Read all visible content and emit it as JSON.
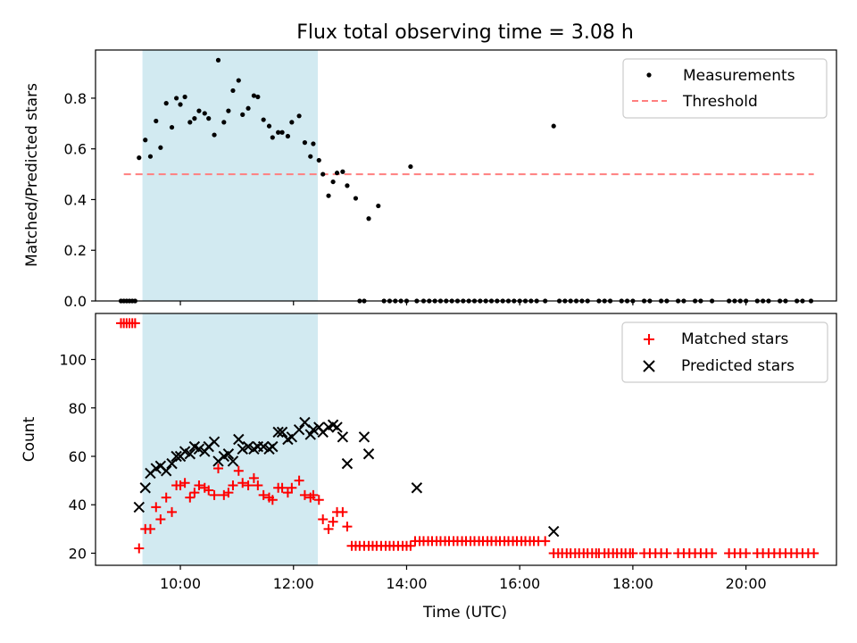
{
  "title": "Flux total observing time = 3.08 h",
  "colors": {
    "shade": "#add8e6",
    "threshold": "#ff7f7f",
    "matched": "#ff0000",
    "predicted": "#000000",
    "measure": "#000000"
  },
  "chart_data": [
    {
      "type": "scatter",
      "ylabel": "Matched/Predicted stars",
      "xlim": [
        8.5,
        21.6
      ],
      "ylim": [
        0,
        0.99
      ],
      "yticks": [
        0.0,
        0.2,
        0.4,
        0.6,
        0.8
      ],
      "ytick_labels": [
        "0.0",
        "0.2",
        "0.4",
        "0.6",
        "0.8"
      ],
      "shaded_span": [
        9.33,
        12.43
      ],
      "legend": {
        "position": "top-right",
        "entries": [
          "Measurements",
          "Threshold"
        ]
      },
      "threshold": {
        "name": "Threshold",
        "value": 0.5,
        "x_range": [
          9.0,
          21.2
        ]
      },
      "series": [
        {
          "name": "Measurements",
          "x": [
            8.95,
            9.0,
            9.05,
            9.1,
            9.15,
            9.2,
            9.27,
            9.38,
            9.47,
            9.57,
            9.65,
            9.75,
            9.85,
            9.93,
            10.0,
            10.08,
            10.17,
            10.25,
            10.33,
            10.43,
            10.5,
            10.6,
            10.67,
            10.77,
            10.85,
            10.93,
            11.03,
            11.1,
            11.2,
            11.3,
            11.37,
            11.47,
            11.57,
            11.63,
            11.73,
            11.8,
            11.9,
            11.97,
            12.1,
            12.2,
            12.3,
            12.35,
            12.45,
            12.52,
            12.62,
            12.7,
            12.77,
            12.87,
            12.95,
            13.1,
            13.17,
            13.25,
            13.33,
            13.5,
            13.6,
            13.7,
            13.8,
            13.9,
            14.0,
            14.07,
            14.18,
            14.3,
            14.4,
            14.5,
            14.6,
            14.7,
            14.8,
            14.9,
            15.0,
            15.1,
            15.2,
            15.3,
            15.4,
            15.5,
            15.6,
            15.7,
            15.8,
            15.9,
            16.0,
            16.1,
            16.2,
            16.3,
            16.45,
            16.6,
            16.7,
            16.8,
            16.9,
            17.0,
            17.1,
            17.2,
            17.4,
            17.5,
            17.6,
            17.8,
            17.9,
            18.0,
            18.2,
            18.3,
            18.5,
            18.6,
            18.8,
            18.9,
            19.1,
            19.2,
            19.4,
            19.7,
            19.8,
            19.9,
            20.0,
            20.2,
            20.3,
            20.4,
            20.6,
            20.7,
            20.9,
            21.0,
            21.15
          ],
          "y": [
            0,
            0,
            0,
            0,
            0,
            0,
            0.565,
            0.635,
            0.57,
            0.71,
            0.605,
            0.78,
            0.685,
            0.8,
            0.775,
            0.805,
            0.705,
            0.72,
            0.75,
            0.74,
            0.72,
            0.655,
            0.95,
            0.705,
            0.75,
            0.83,
            0.87,
            0.735,
            0.76,
            0.81,
            0.805,
            0.715,
            0.69,
            0.645,
            0.665,
            0.665,
            0.65,
            0.705,
            0.73,
            0.625,
            0.57,
            0.62,
            0.555,
            0.5,
            0.415,
            0.47,
            0.505,
            0.51,
            0.455,
            0.405,
            0,
            0,
            0.325,
            0.375,
            0,
            0,
            0,
            0,
            0,
            0.53,
            0,
            0,
            0,
            0,
            0,
            0,
            0,
            0,
            0,
            0,
            0,
            0,
            0,
            0,
            0,
            0,
            0,
            0,
            0,
            0,
            0,
            0,
            0,
            0.69,
            0,
            0,
            0,
            0,
            0,
            0,
            0,
            0,
            0,
            0,
            0,
            0,
            0,
            0,
            0,
            0,
            0,
            0,
            0,
            0,
            0,
            0,
            0,
            0,
            0,
            0,
            0,
            0,
            0,
            0,
            0,
            0,
            0
          ]
        }
      ]
    },
    {
      "type": "scatter",
      "xlabel": "Time (UTC)",
      "ylabel": "Count",
      "xlim": [
        8.5,
        21.6
      ],
      "ylim": [
        15,
        119
      ],
      "xticks": [
        10,
        12,
        14,
        16,
        18,
        20
      ],
      "xtick_labels": [
        "10:00",
        "12:00",
        "14:00",
        "16:00",
        "18:00",
        "20:00"
      ],
      "yticks": [
        20,
        40,
        60,
        80,
        100
      ],
      "ytick_labels": [
        "20",
        "40",
        "60",
        "80",
        "100"
      ],
      "shaded_span": [
        9.33,
        12.43
      ],
      "legend": {
        "position": "top-right",
        "entries": [
          "Matched stars",
          "Predicted stars"
        ]
      },
      "series": [
        {
          "name": "Matched stars",
          "marker": "plus",
          "x": [
            8.95,
            9.0,
            9.05,
            9.1,
            9.15,
            9.2,
            9.27,
            9.38,
            9.47,
            9.57,
            9.65,
            9.75,
            9.85,
            9.93,
            10.0,
            10.08,
            10.17,
            10.25,
            10.33,
            10.43,
            10.5,
            10.6,
            10.67,
            10.77,
            10.85,
            10.93,
            11.03,
            11.1,
            11.2,
            11.3,
            11.37,
            11.47,
            11.57,
            11.63,
            11.73,
            11.8,
            11.9,
            11.97,
            12.1,
            12.2,
            12.3,
            12.35,
            12.45,
            12.52,
            12.62,
            12.7,
            12.77,
            12.87,
            12.95,
            13.03,
            13.1,
            13.17,
            13.25,
            13.33,
            13.4,
            13.47,
            13.55,
            13.63,
            13.7,
            13.77,
            13.85,
            13.93,
            14.0,
            14.07,
            14.15,
            14.23,
            14.3,
            14.38,
            14.45,
            14.53,
            14.6,
            14.68,
            14.75,
            14.83,
            14.9,
            14.98,
            15.05,
            15.13,
            15.2,
            15.28,
            15.35,
            15.43,
            15.5,
            15.58,
            15.65,
            15.73,
            15.8,
            15.88,
            15.95,
            16.03,
            16.1,
            16.18,
            16.25,
            16.33,
            16.45,
            16.6,
            16.68,
            16.75,
            16.83,
            16.9,
            16.98,
            17.05,
            17.13,
            17.2,
            17.28,
            17.35,
            17.4,
            17.5,
            17.57,
            17.65,
            17.72,
            17.8,
            17.87,
            17.95,
            18.0,
            18.2,
            18.3,
            18.4,
            18.5,
            18.6,
            18.8,
            18.9,
            19.0,
            19.1,
            19.2,
            19.3,
            19.4,
            19.7,
            19.8,
            19.9,
            20.0,
            20.2,
            20.3,
            20.4,
            20.5,
            20.6,
            20.7,
            20.8,
            20.9,
            21.0,
            21.1,
            21.2
          ],
          "y": [
            115,
            115,
            115,
            115,
            115,
            115,
            22,
            30,
            30,
            39,
            34,
            43,
            37,
            48,
            48,
            49,
            43,
            45,
            48,
            47,
            46,
            44,
            55,
            44,
            45,
            48,
            54,
            49,
            48,
            51,
            48,
            44,
            43,
            42,
            47,
            47,
            45,
            47,
            50,
            44,
            43,
            44,
            42,
            34,
            30,
            33,
            37,
            37,
            31,
            23,
            23,
            23,
            23,
            23,
            23,
            23,
            23,
            23,
            23,
            23,
            23,
            23,
            23,
            23,
            25,
            25,
            25,
            25,
            25,
            25,
            25,
            25,
            25,
            25,
            25,
            25,
            25,
            25,
            25,
            25,
            25,
            25,
            25,
            25,
            25,
            25,
            25,
            25,
            25,
            25,
            25,
            25,
            25,
            25,
            25,
            20,
            20,
            20,
            20,
            20,
            20,
            20,
            20,
            20,
            20,
            20,
            20,
            20,
            20,
            20,
            20,
            20,
            20,
            20,
            20,
            20,
            20,
            20,
            20,
            20,
            20,
            20,
            20,
            20,
            20,
            20,
            20,
            20,
            20,
            20,
            20,
            20,
            20,
            20,
            20,
            20,
            20,
            20,
            20,
            20,
            20,
            20
          ]
        },
        {
          "name": "Predicted stars",
          "marker": "x",
          "x": [
            9.27,
            9.38,
            9.47,
            9.57,
            9.65,
            9.75,
            9.85,
            9.93,
            10.0,
            10.08,
            10.17,
            10.25,
            10.33,
            10.43,
            10.5,
            10.6,
            10.67,
            10.77,
            10.85,
            10.93,
            11.03,
            11.1,
            11.2,
            11.3,
            11.37,
            11.47,
            11.57,
            11.63,
            11.73,
            11.8,
            11.9,
            11.97,
            12.1,
            12.2,
            12.3,
            12.35,
            12.45,
            12.52,
            12.62,
            12.7,
            12.77,
            12.87,
            12.95,
            13.25,
            13.33,
            14.18,
            16.6
          ],
          "y": [
            39,
            47,
            53,
            55,
            56,
            54,
            57,
            60,
            60,
            62,
            61,
            64,
            63,
            62,
            64,
            66,
            58,
            60,
            61,
            58,
            67,
            63,
            64,
            63,
            64,
            64,
            63,
            64,
            70,
            70,
            67,
            68,
            71,
            74,
            69,
            71,
            72,
            70,
            72,
            73,
            72,
            68,
            57,
            68,
            61,
            47,
            29
          ]
        }
      ]
    }
  ]
}
